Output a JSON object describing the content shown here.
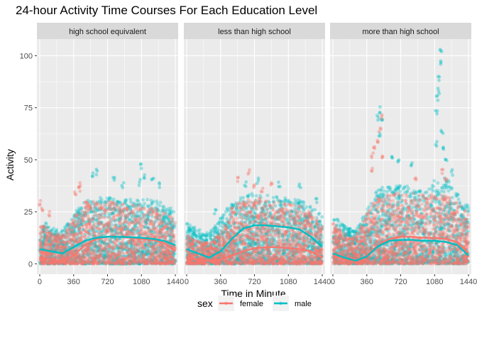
{
  "chart_data": {
    "type": "scatter",
    "title": "24-hour Activity Time Courses For Each Education Level",
    "xlabel": "Time in Minute",
    "ylabel": "Activity",
    "xlim": [
      -30,
      1470
    ],
    "ylim": [
      -5,
      108
    ],
    "x_ticks": [
      0,
      360,
      720,
      1080,
      1440
    ],
    "y_ticks": [
      0,
      25,
      50,
      75,
      100
    ],
    "grid": true,
    "facet_labels": [
      "high school equivalent",
      "less than high school",
      "more than high school"
    ],
    "legend": {
      "title": "sex",
      "position": "bottom",
      "entries": [
        {
          "name": "female",
          "color": "#F8766D"
        },
        {
          "name": "male",
          "color": "#00BFC4"
        }
      ]
    },
    "colors": {
      "female": "#F8766D",
      "male": "#00BFC4",
      "panel_bg": "#EBEBEB",
      "strip_bg": "#D9D9D9",
      "grid": "#FFFFFF"
    },
    "smooth_lines": {
      "high school equivalent": {
        "female": {
          "x": [
            0,
            120,
            240,
            360,
            480,
            600,
            720,
            840,
            960,
            1080,
            1200,
            1320,
            1440
          ],
          "y": [
            3,
            2,
            1,
            4,
            9,
            12,
            13,
            13,
            12.5,
            12,
            11.5,
            10,
            6
          ]
        },
        "male": {
          "x": [
            0,
            120,
            240,
            360,
            480,
            600,
            720,
            840,
            960,
            1080,
            1200,
            1320,
            1440
          ],
          "y": [
            7,
            6,
            5,
            8,
            11,
            12.5,
            13,
            13,
            12.8,
            12.5,
            12,
            11,
            9
          ]
        }
      },
      "less than high school": {
        "female": {
          "x": [
            0,
            120,
            240,
            360,
            480,
            600,
            720,
            840,
            960,
            1080,
            1200,
            1320,
            1440
          ],
          "y": [
            3,
            2,
            1.5,
            2,
            4,
            6,
            7.5,
            8,
            8,
            7.5,
            7,
            6,
            3
          ]
        },
        "male": {
          "x": [
            0,
            120,
            240,
            360,
            480,
            600,
            720,
            840,
            960,
            1080,
            1200,
            1320,
            1440
          ],
          "y": [
            7,
            5,
            3,
            6,
            12,
            17,
            18.5,
            18.5,
            18,
            17.5,
            16.5,
            13,
            8
          ]
        }
      },
      "more than high school": {
        "female": {
          "x": [
            0,
            120,
            240,
            360,
            480,
            600,
            720,
            840,
            960,
            1080,
            1200,
            1320,
            1440
          ],
          "y": [
            4,
            2,
            1,
            4,
            9,
            12,
            13,
            13,
            12.5,
            12.5,
            12,
            10.5,
            5
          ]
        },
        "male": {
          "x": [
            0,
            120,
            240,
            360,
            480,
            600,
            720,
            840,
            960,
            1080,
            1200,
            1320,
            1440
          ],
          "y": [
            5,
            3,
            1.5,
            3.5,
            8.5,
            11,
            11.5,
            11.5,
            11,
            11,
            10.5,
            9,
            4
          ]
        }
      }
    },
    "point_clouds": {
      "high school equivalent": {
        "female": {
          "lo_pts": [
            [
              0,
              20
            ],
            [
              120,
              15
            ],
            [
              240,
              14
            ],
            [
              360,
              22
            ],
            [
              480,
              30
            ],
            [
              600,
              30
            ],
            [
              720,
              30
            ],
            [
              840,
              29
            ],
            [
              960,
              29
            ],
            [
              1080,
              28
            ],
            [
              1200,
              27
            ],
            [
              1320,
              25
            ],
            [
              1440,
              22
            ]
          ],
          "outliers": [
            [
              0,
              29
            ],
            [
              30,
              27
            ],
            [
              100,
              24
            ],
            [
              380,
              34
            ],
            [
              420,
              36
            ],
            [
              430,
              38
            ]
          ]
        },
        "male": {
          "lo_pts": [
            [
              0,
              22
            ],
            [
              120,
              18
            ],
            [
              240,
              16
            ],
            [
              360,
              24
            ],
            [
              480,
              31
            ],
            [
              600,
              32
            ],
            [
              720,
              32
            ],
            [
              840,
              31
            ],
            [
              960,
              31
            ],
            [
              1080,
              31
            ],
            [
              1200,
              31
            ],
            [
              1320,
              29
            ],
            [
              1440,
              26
            ]
          ],
          "outliers": [
            [
              560,
              43
            ],
            [
              600,
              44
            ],
            [
              790,
              40
            ],
            [
              880,
              38
            ],
            [
              1060,
              39
            ],
            [
              1080,
              47
            ],
            [
              1120,
              42
            ],
            [
              1200,
              41
            ],
            [
              1260,
              38
            ]
          ]
        }
      },
      "less than high school": {
        "female": {
          "lo_pts": [
            [
              0,
              14
            ],
            [
              120,
              11
            ],
            [
              240,
              10
            ],
            [
              360,
              15
            ],
            [
              480,
              27
            ],
            [
              600,
              31
            ],
            [
              720,
              32
            ],
            [
              840,
              31
            ],
            [
              960,
              30
            ],
            [
              1080,
              29
            ],
            [
              1200,
              28
            ],
            [
              1320,
              25
            ],
            [
              1440,
              18
            ]
          ],
          "outliers": [
            [
              540,
              41
            ],
            [
              660,
              44
            ],
            [
              720,
              38
            ],
            [
              800,
              36
            ],
            [
              900,
              39
            ]
          ]
        },
        "male": {
          "lo_pts": [
            [
              0,
              20
            ],
            [
              120,
              17
            ],
            [
              240,
              15
            ],
            [
              360,
              22
            ],
            [
              480,
              30
            ],
            [
              600,
              33
            ],
            [
              720,
              34
            ],
            [
              840,
              33
            ],
            [
              960,
              33
            ],
            [
              1080,
              32
            ],
            [
              1200,
              31
            ],
            [
              1320,
              28
            ],
            [
              1440,
              23
            ]
          ],
          "outliers": [
            [
              300,
              25
            ],
            [
              620,
              38
            ],
            [
              760,
              40
            ],
            [
              980,
              38
            ],
            [
              1200,
              37
            ],
            [
              1380,
              30
            ]
          ]
        }
      },
      "more than high school": {
        "female": {
          "lo_pts": [
            [
              0,
              20
            ],
            [
              120,
              15
            ],
            [
              240,
              13
            ],
            [
              360,
              24
            ],
            [
              480,
              33
            ],
            [
              600,
              34
            ],
            [
              720,
              34
            ],
            [
              840,
              34
            ],
            [
              960,
              34
            ],
            [
              1080,
              34
            ],
            [
              1200,
              33
            ],
            [
              1320,
              30
            ],
            [
              1440,
              24
            ]
          ],
          "outliers": [
            [
              420,
              46
            ],
            [
              420,
              52
            ],
            [
              440,
              55
            ],
            [
              480,
              58
            ],
            [
              500,
              65
            ],
            [
              520,
              71
            ],
            [
              530,
              52
            ],
            [
              880,
              40
            ],
            [
              1160,
              44
            ],
            [
              1200,
              40
            ]
          ]
        },
        "male": {
          "lo_pts": [
            [
              0,
              24
            ],
            [
              120,
              19
            ],
            [
              240,
              16
            ],
            [
              360,
              26
            ],
            [
              480,
              36
            ],
            [
              600,
              38
            ],
            [
              720,
              38
            ],
            [
              840,
              38
            ],
            [
              960,
              38
            ],
            [
              1080,
              40
            ],
            [
              1200,
              42
            ],
            [
              1320,
              34
            ],
            [
              1440,
              28
            ]
          ],
          "outliers": [
            [
              480,
              70
            ],
            [
              490,
              74
            ],
            [
              500,
              62
            ],
            [
              520,
              68
            ],
            [
              1100,
              73
            ],
            [
              1110,
              80
            ],
            [
              1120,
              83
            ],
            [
              1130,
              89
            ],
            [
              1140,
              96
            ],
            [
              1150,
              103
            ],
            [
              1160,
              64
            ],
            [
              1180,
              56
            ],
            [
              1100,
              58
            ],
            [
              1200,
              50
            ],
            [
              1260,
              44
            ],
            [
              620,
              52
            ],
            [
              700,
              50
            ],
            [
              840,
              48
            ]
          ]
        }
      }
    }
  }
}
